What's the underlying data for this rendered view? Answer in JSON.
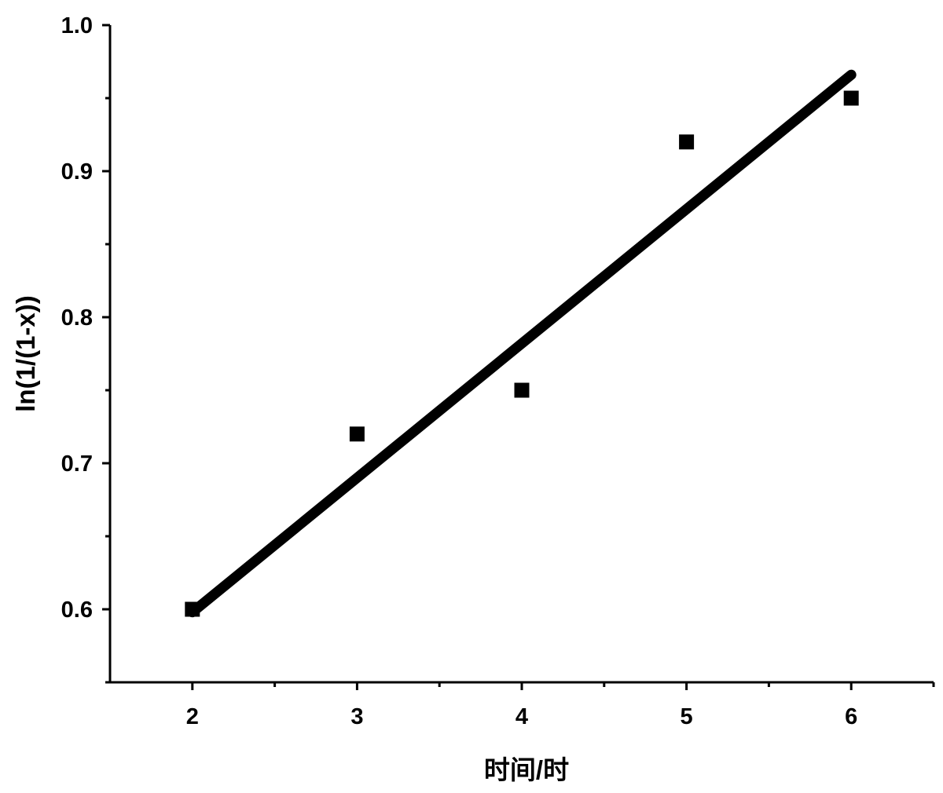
{
  "chart_data": {
    "type": "scatter",
    "title": "",
    "xlabel": "时间/时",
    "ylabel": "ln(1/(1-x))",
    "xlim": [
      1.5,
      6.5
    ],
    "ylim": [
      0.55,
      1.0
    ],
    "x_ticks": [
      2,
      3,
      4,
      5,
      6
    ],
    "x_tick_labels": [
      "2",
      "3",
      "4",
      "5",
      "6"
    ],
    "x_minor_ticks": [
      2.5,
      3.5,
      4.5,
      5.5
    ],
    "y_ticks": [
      0.6,
      0.7,
      0.8,
      0.9,
      1.0
    ],
    "y_tick_labels": [
      "0.6",
      "0.7",
      "0.8",
      "0.9",
      "1.0"
    ],
    "y_minor_ticks": [
      0.55,
      0.65,
      0.75,
      0.85,
      0.95
    ],
    "grid": false,
    "legend": "none",
    "series": [
      {
        "type": "scatter",
        "marker": "square",
        "color": "#000000",
        "x": [
          2,
          3,
          4,
          5,
          6
        ],
        "y": [
          0.6,
          0.72,
          0.75,
          0.92,
          0.95
        ]
      },
      {
        "type": "line",
        "color": "#000000",
        "x": [
          2,
          6
        ],
        "y": [
          0.598,
          0.966
        ]
      }
    ]
  }
}
